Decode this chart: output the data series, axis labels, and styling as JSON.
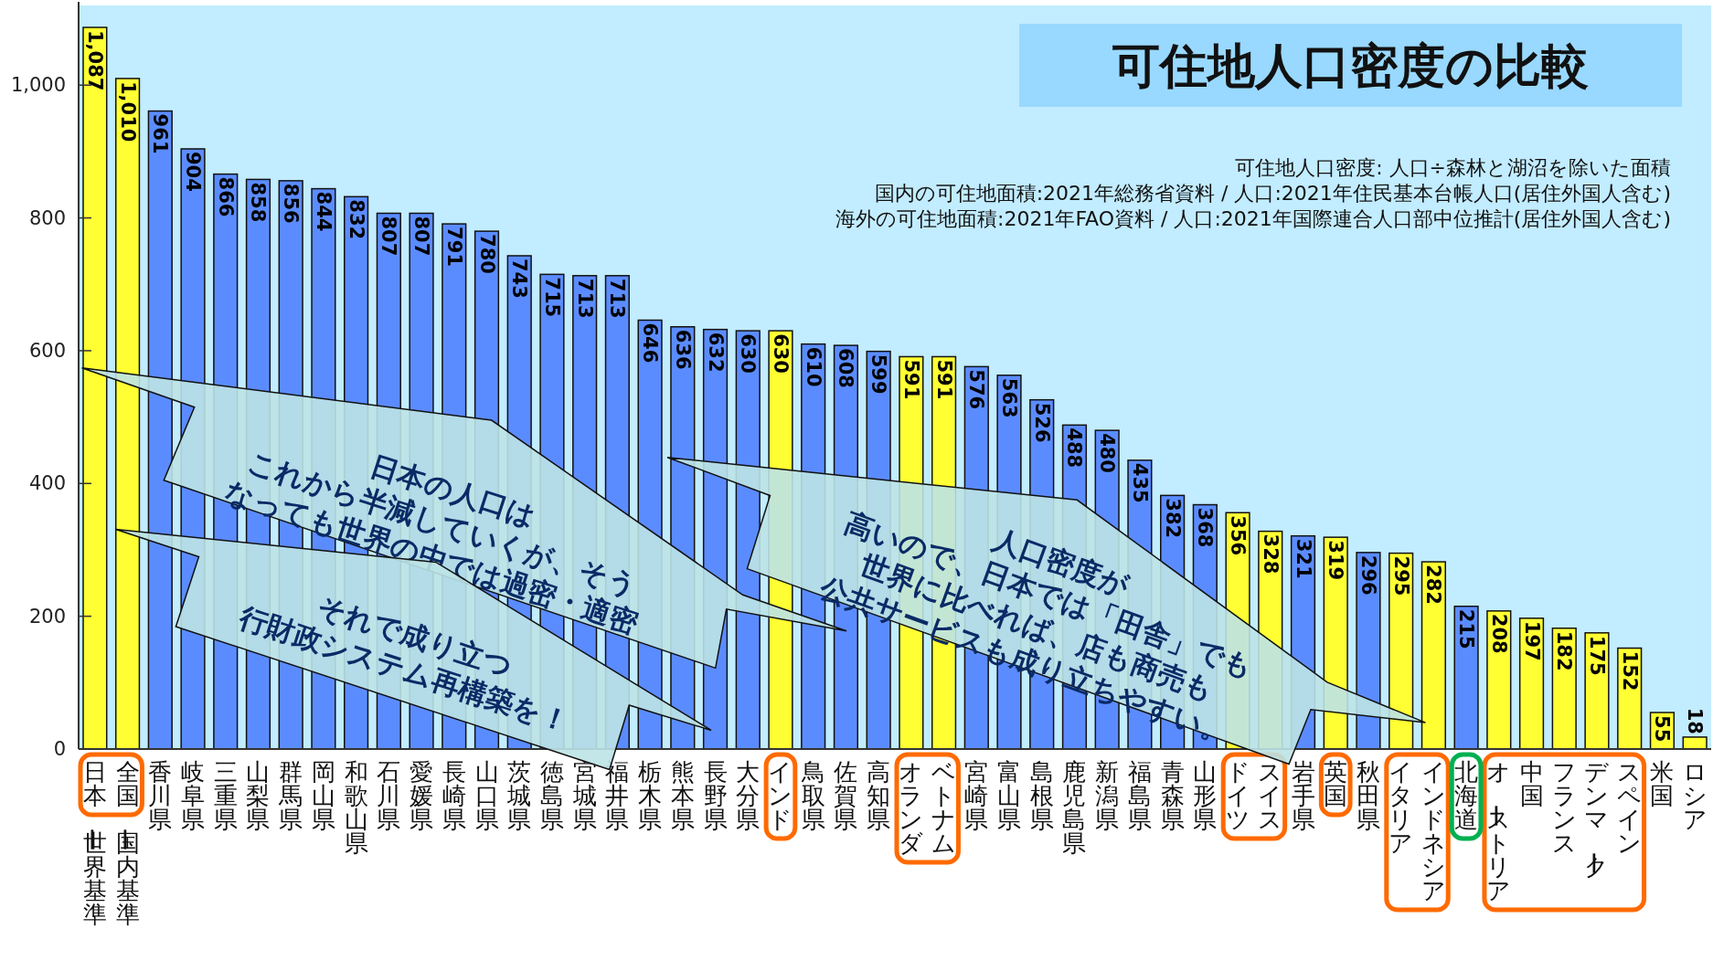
{
  "chart_data": {
    "type": "bar",
    "title": "可住地人口密度の比較",
    "subtitle": "可住地人口密度:  人口÷森林と湖沼を除いた面積",
    "categories": [
      "日本ー世界基準",
      "全国ー国内基準",
      "香川県",
      "岐阜県",
      "三重県",
      "山梨県",
      "群馬県",
      "岡山県",
      "和歌山県",
      "石川県",
      "愛媛県",
      "長崎県",
      "山口県",
      "茨城県",
      "徳島県",
      "宮城県",
      "福井県",
      "栃木県",
      "熊本県",
      "長野県",
      "大分県",
      "インド",
      "鳥取県",
      "佐賀県",
      "高知県",
      "オランダ",
      "ベトナム",
      "宮崎県",
      "富山県",
      "島根県",
      "鹿児島県",
      "新潟県",
      "福島県",
      "青森県",
      "山形県",
      "ドイツ",
      "スイス",
      "岩手県",
      "英国",
      "秋田県",
      "イタリア",
      "インドネシア",
      "北海道",
      "オーストリア",
      "中国",
      "フランス",
      "デンマーク",
      "スペイン",
      "米国",
      "ロシア"
    ],
    "values": [
      1087,
      1010,
      961,
      904,
      866,
      858,
      856,
      844,
      832,
      807,
      807,
      791,
      780,
      743,
      715,
      713,
      713,
      646,
      636,
      632,
      630,
      630,
      610,
      608,
      599,
      591,
      591,
      576,
      563,
      526,
      488,
      480,
      435,
      382,
      368,
      356,
      328,
      321,
      319,
      296,
      295,
      282,
      215,
      208,
      197,
      182,
      175,
      152,
      55,
      18
    ],
    "value_labels": [
      "1,087",
      "1,010",
      "961",
      "904",
      "866",
      "858",
      "856",
      "844",
      "832",
      "807",
      "807",
      "791",
      "780",
      "743",
      "715",
      "713",
      "713",
      "646",
      "636",
      "632",
      "630",
      "630",
      "610",
      "608",
      "599",
      "591",
      "591",
      "576",
      "563",
      "526",
      "488",
      "480",
      "435",
      "382",
      "368",
      "356",
      "328",
      "321",
      "319",
      "296",
      "295",
      "282",
      "215",
      "208",
      "197",
      "182",
      "175",
      "152",
      "55",
      "18"
    ],
    "colors": [
      "#ffff33",
      "#ffff33",
      "#5b8cff",
      "#5b8cff",
      "#5b8cff",
      "#5b8cff",
      "#5b8cff",
      "#5b8cff",
      "#5b8cff",
      "#5b8cff",
      "#5b8cff",
      "#5b8cff",
      "#5b8cff",
      "#5b8cff",
      "#5b8cff",
      "#5b8cff",
      "#5b8cff",
      "#5b8cff",
      "#5b8cff",
      "#5b8cff",
      "#5b8cff",
      "#ffff33",
      "#5b8cff",
      "#5b8cff",
      "#5b8cff",
      "#ffff33",
      "#ffff33",
      "#5b8cff",
      "#5b8cff",
      "#5b8cff",
      "#5b8cff",
      "#5b8cff",
      "#5b8cff",
      "#5b8cff",
      "#5b8cff",
      "#ffff33",
      "#ffff33",
      "#5b8cff",
      "#ffff33",
      "#5b8cff",
      "#ffff33",
      "#ffff33",
      "#5b8cff",
      "#ffff33",
      "#ffff33",
      "#ffff33",
      "#ffff33",
      "#ffff33",
      "#ffff33",
      "#ffff33"
    ],
    "ylim": [
      0,
      1120
    ],
    "yticks": [
      0,
      200,
      400,
      600,
      800,
      {
        "value": 1000,
        "label": "1,000"
      }
    ],
    "annotations": [
      "国内の可住地面積:2021年総務省資料 / 人口:2021年住民基本台帳人口(居住外国人含む)",
      "海外の可住地面積:2021年FAO資料 / 人口:2021年国際連合人口部中位推計(居住外国人含む)",
      "日本の人口は",
      "これから半減していくが、そう",
      "なっても世界の中では過密・適密",
      "それで成り立つ",
      "行財政システム再構築を！",
      "人口密度が",
      "高いので、日本では「田舎」でも",
      "世界に比べれば、店も商売も",
      "公共サービスも成り立ちやすい。"
    ]
  }
}
